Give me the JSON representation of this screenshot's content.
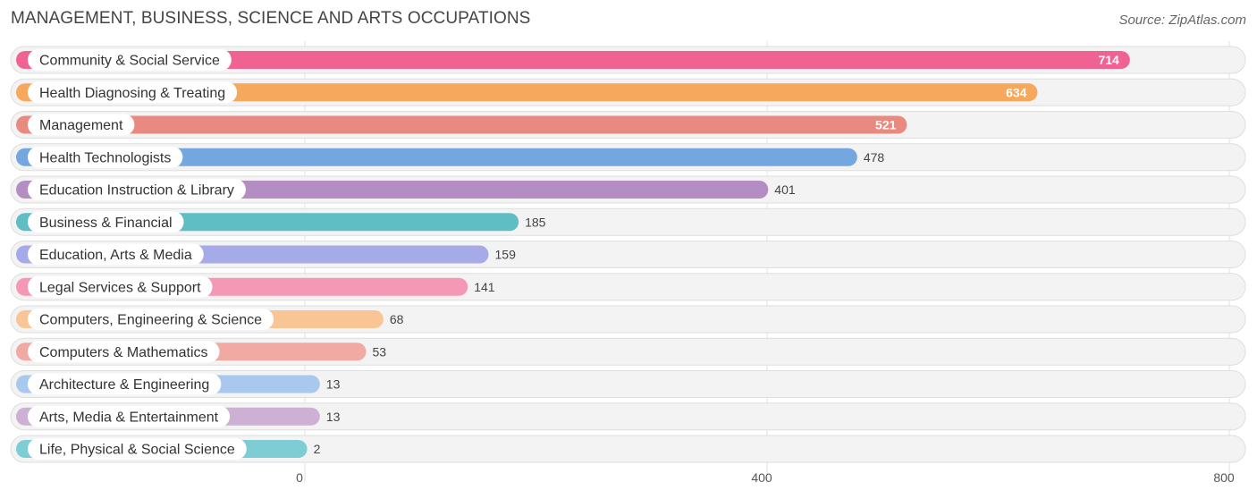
{
  "header": {
    "title": "MANAGEMENT, BUSINESS, SCIENCE AND ARTS OCCUPATIONS",
    "source": "Source: ZipAtlas.com"
  },
  "chart_data": {
    "type": "bar",
    "orientation": "horizontal",
    "title": "MANAGEMENT, BUSINESS, SCIENCE AND ARTS OCCUPATIONS",
    "xlabel": "",
    "ylabel": "",
    "xlim": [
      0,
      800
    ],
    "ticks": [
      0,
      400,
      800
    ],
    "grid": true,
    "categories": [
      "Community & Social Service",
      "Health Diagnosing & Treating",
      "Management",
      "Health Technologists",
      "Education Instruction & Library",
      "Business & Financial",
      "Education, Arts & Media",
      "Legal Services & Support",
      "Computers, Engineering & Science",
      "Computers & Mathematics",
      "Architecture & Engineering",
      "Arts, Media & Entertainment",
      "Life, Physical & Social Science"
    ],
    "values": [
      714,
      634,
      521,
      478,
      401,
      185,
      159,
      141,
      68,
      53,
      13,
      13,
      2
    ],
    "value_labels": [
      "714",
      "634",
      "521",
      "478",
      "401",
      "185",
      "159",
      "141",
      "68",
      "53",
      "13",
      "13",
      "2"
    ],
    "colors": [
      "#f06292",
      "#f6a85d",
      "#e88a80",
      "#74a7e0",
      "#b48ec2",
      "#5ebec3",
      "#a7aae8",
      "#f598b6",
      "#f9c594",
      "#f0a9a3",
      "#a9c8ee",
      "#cdb0d4",
      "#7ecdd4"
    ]
  }
}
